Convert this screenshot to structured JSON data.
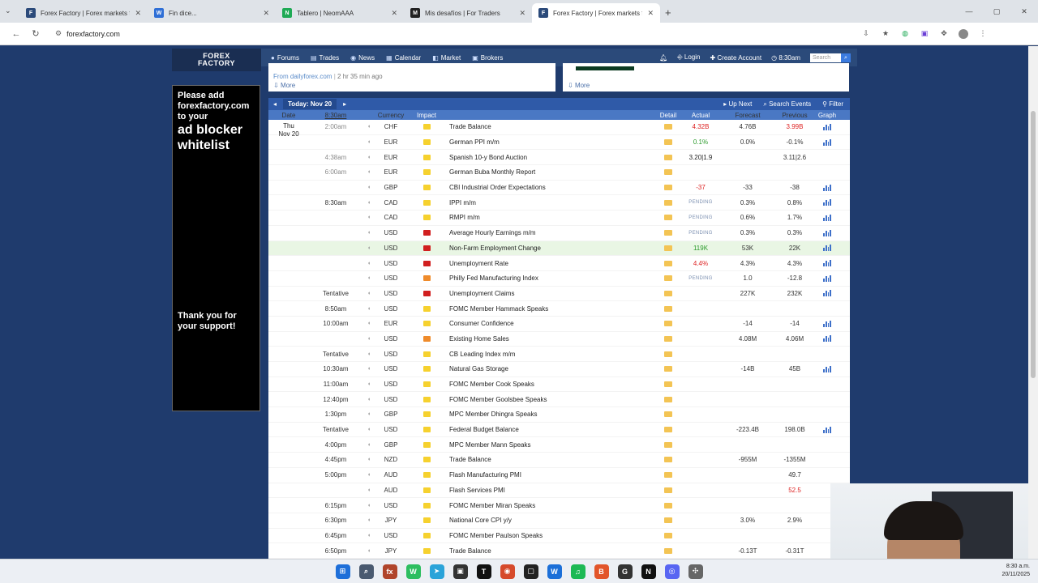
{
  "browser": {
    "tabs": [
      {
        "title": "Forex Factory | Forex markets fo",
        "color": "#2b4a7a",
        "glyph": "F"
      },
      {
        "title": "Fin dice...",
        "color": "#2f6fd6",
        "glyph": "W"
      },
      {
        "title": "Tablero | NeomAAA",
        "color": "#1faa55",
        "glyph": "N"
      },
      {
        "title": "Mis desafíos | For Traders",
        "color": "#222222",
        "glyph": "M"
      },
      {
        "title": "Forex Factory | Forex markets fo",
        "color": "#2b4a7a",
        "glyph": "F",
        "active": true
      }
    ],
    "url": "forexfactory.com"
  },
  "header": {
    "logo_line1": "FOREX",
    "logo_line2": "FACTORY",
    "nav": [
      "Forums",
      "Trades",
      "News",
      "Calendar",
      "Market",
      "Brokers"
    ],
    "login": "Login",
    "create_account": "Create Account",
    "time": "8:30am",
    "search_placeholder": "Search"
  },
  "ad": {
    "line1": "Please add",
    "line2": "forexfactory.com",
    "line3": "to your",
    "line4": "ad blocker",
    "line5": "whitelist",
    "thanks": "Thank you for your support!"
  },
  "news_left": {
    "source": "From dailyforex.com",
    "ago": "2 hr 35 min ago",
    "more": "More"
  },
  "news_right": {
    "more": "More"
  },
  "calendar": {
    "today_label": "Today: Nov 20",
    "up_next": "Up Next",
    "search_events": "Search Events",
    "filter": "Filter",
    "columns": {
      "date": "Date",
      "time": "8:30am",
      "currency": "Currency",
      "impact": "Impact",
      "detail": "Detail",
      "actual": "Actual",
      "forecast": "Forecast",
      "previous": "Previous",
      "graph": "Graph"
    },
    "day": "Thu",
    "day_date": "Nov 20",
    "rows": [
      {
        "time": "2:00am",
        "past": true,
        "cur": "CHF",
        "impact": "low",
        "event": "Trade Balance",
        "actual": "4.32B",
        "actual_color": "red",
        "forecast": "4.76B",
        "prev": "3.99B",
        "prev_color": "red",
        "graph": true
      },
      {
        "time": "",
        "cur": "EUR",
        "impact": "low",
        "event": "German PPI m/m",
        "actual": "0.1%",
        "actual_color": "green",
        "forecast": "0.0%",
        "prev": "-0.1%",
        "graph": true
      },
      {
        "time": "4:38am",
        "past": true,
        "cur": "EUR",
        "impact": "low",
        "event": "Spanish 10-y Bond Auction",
        "actual": "3.20|1.9",
        "forecast": "",
        "prev": "3.11|2.6",
        "graph": false
      },
      {
        "time": "6:00am",
        "past": true,
        "cur": "EUR",
        "impact": "low",
        "event": "German Buba Monthly Report",
        "actual": "",
        "forecast": "",
        "prev": "",
        "graph": false
      },
      {
        "time": "",
        "cur": "GBP",
        "impact": "low",
        "event": "CBI Industrial Order Expectations",
        "actual": "-37",
        "actual_color": "red",
        "forecast": "-33",
        "prev": "-38",
        "graph": true
      },
      {
        "time": "8:30am",
        "cur": "CAD",
        "impact": "low",
        "event": "IPPI m/m",
        "actual": "PENDING",
        "actual_color": "pending",
        "forecast": "0.3%",
        "prev": "0.8%",
        "graph": true
      },
      {
        "time": "",
        "cur": "CAD",
        "impact": "low",
        "event": "RMPI m/m",
        "actual": "PENDING",
        "actual_color": "pending",
        "forecast": "0.6%",
        "prev": "1.7%",
        "graph": true
      },
      {
        "time": "",
        "cur": "USD",
        "impact": "high",
        "event": "Average Hourly Earnings m/m",
        "actual": "PENDING",
        "actual_color": "pending",
        "forecast": "0.3%",
        "prev": "0.3%",
        "graph": true
      },
      {
        "time": "",
        "cur": "USD",
        "impact": "high",
        "event": "Non-Farm Employment Change",
        "actual": "119K",
        "actual_color": "green",
        "forecast": "53K",
        "prev": "22K",
        "graph": true,
        "highlight": true
      },
      {
        "time": "",
        "cur": "USD",
        "impact": "high",
        "event": "Unemployment Rate",
        "actual": "4.4%",
        "actual_color": "red",
        "forecast": "4.3%",
        "prev": "4.3%",
        "graph": true
      },
      {
        "time": "",
        "cur": "USD",
        "impact": "med",
        "event": "Philly Fed Manufacturing Index",
        "actual": "PENDING",
        "actual_color": "pending",
        "forecast": "1.0",
        "prev": "-12.8",
        "graph": true
      },
      {
        "time": "Tentative",
        "cur": "USD",
        "impact": "high",
        "event": "Unemployment Claims",
        "actual": "",
        "forecast": "227K",
        "prev": "232K",
        "graph": true
      },
      {
        "time": "8:50am",
        "cur": "USD",
        "impact": "low",
        "event": "FOMC Member Hammack Speaks",
        "actual": "",
        "forecast": "",
        "prev": "",
        "graph": false
      },
      {
        "time": "10:00am",
        "cur": "EUR",
        "impact": "low",
        "event": "Consumer Confidence",
        "actual": "",
        "forecast": "-14",
        "prev": "-14",
        "graph": true
      },
      {
        "time": "",
        "cur": "USD",
        "impact": "med",
        "event": "Existing Home Sales",
        "actual": "",
        "forecast": "4.08M",
        "prev": "4.06M",
        "graph": true
      },
      {
        "time": "Tentative",
        "cur": "USD",
        "impact": "low",
        "event": "CB Leading Index m/m",
        "actual": "",
        "forecast": "",
        "prev": "",
        "graph": false
      },
      {
        "time": "10:30am",
        "cur": "USD",
        "impact": "low",
        "event": "Natural Gas Storage",
        "actual": "",
        "forecast": "-14B",
        "prev": "45B",
        "graph": true
      },
      {
        "time": "11:00am",
        "cur": "USD",
        "impact": "low",
        "event": "FOMC Member Cook Speaks",
        "actual": "",
        "forecast": "",
        "prev": "",
        "graph": false
      },
      {
        "time": "12:40pm",
        "cur": "USD",
        "impact": "low",
        "event": "FOMC Member Goolsbee Speaks",
        "actual": "",
        "forecast": "",
        "prev": "",
        "graph": false
      },
      {
        "time": "1:30pm",
        "cur": "GBP",
        "impact": "low",
        "event": "MPC Member Dhingra Speaks",
        "actual": "",
        "forecast": "",
        "prev": "",
        "graph": false
      },
      {
        "time": "Tentative",
        "cur": "USD",
        "impact": "low",
        "event": "Federal Budget Balance",
        "actual": "",
        "forecast": "-223.4B",
        "prev": "198.0B",
        "graph": true
      },
      {
        "time": "4:00pm",
        "cur": "GBP",
        "impact": "low",
        "event": "MPC Member Mann Speaks",
        "actual": "",
        "forecast": "",
        "prev": "",
        "graph": false
      },
      {
        "time": "4:45pm",
        "cur": "NZD",
        "impact": "low",
        "event": "Trade Balance",
        "actual": "",
        "forecast": "-955M",
        "prev": "-1355M",
        "graph": false
      },
      {
        "time": "5:00pm",
        "cur": "AUD",
        "impact": "low",
        "event": "Flash Manufacturing PMI",
        "actual": "",
        "forecast": "",
        "prev": "49.7",
        "graph": false
      },
      {
        "time": "",
        "cur": "AUD",
        "impact": "low",
        "event": "Flash Services PMI",
        "actual": "",
        "forecast": "",
        "prev": "52.5",
        "prev_color": "red",
        "graph": false
      },
      {
        "time": "6:15pm",
        "cur": "USD",
        "impact": "low",
        "event": "FOMC Member Miran Speaks",
        "actual": "",
        "forecast": "",
        "prev": "",
        "graph": false
      },
      {
        "time": "6:30pm",
        "cur": "JPY",
        "impact": "low",
        "event": "National Core CPI y/y",
        "actual": "",
        "forecast": "3.0%",
        "prev": "2.9%",
        "graph": false
      },
      {
        "time": "6:45pm",
        "cur": "USD",
        "impact": "low",
        "event": "FOMC Member Paulson Speaks",
        "actual": "",
        "forecast": "",
        "prev": "",
        "graph": false
      },
      {
        "time": "6:50pm",
        "cur": "JPY",
        "impact": "low",
        "event": "Trade Balance",
        "actual": "",
        "forecast": "-0.13T",
        "prev": "-0.31T",
        "graph": false
      }
    ]
  },
  "taskbar": {
    "time": "8:30 a.m.",
    "date": "20/11/2025",
    "apps": [
      {
        "glyph": "⊞",
        "color": "#1e6fd9",
        "name": "start-icon"
      },
      {
        "glyph": "⌕",
        "color": "#4a5a70",
        "name": "search-icon"
      },
      {
        "glyph": "fx",
        "color": "#b0442b",
        "name": "fx-app-icon"
      },
      {
        "glyph": "W",
        "color": "#2dbe60",
        "name": "whatsapp-icon"
      },
      {
        "glyph": "➤",
        "color": "#2aa3d9",
        "name": "telegram-icon"
      },
      {
        "glyph": "▣",
        "color": "#333333",
        "name": "calculator-icon"
      },
      {
        "glyph": "T",
        "color": "#111111",
        "name": "tradingview-icon"
      },
      {
        "glyph": "◉",
        "color": "#d64a2b",
        "name": "chrome-icon"
      },
      {
        "glyph": "▢",
        "color": "#222222",
        "name": "terminal-icon"
      },
      {
        "glyph": "W",
        "color": "#1b6fd8",
        "name": "app-w-icon"
      },
      {
        "glyph": "♫",
        "color": "#1db954",
        "name": "spotify-icon"
      },
      {
        "glyph": "B",
        "color": "#e2552a",
        "name": "brave-icon"
      },
      {
        "glyph": "G",
        "color": "#333333",
        "name": "gtc-icon"
      },
      {
        "glyph": "N",
        "color": "#111111",
        "name": "notion-icon"
      },
      {
        "glyph": "◎",
        "color": "#5865f2",
        "name": "discord-icon"
      },
      {
        "glyph": "✣",
        "color": "#666666",
        "name": "app-icon"
      }
    ]
  }
}
